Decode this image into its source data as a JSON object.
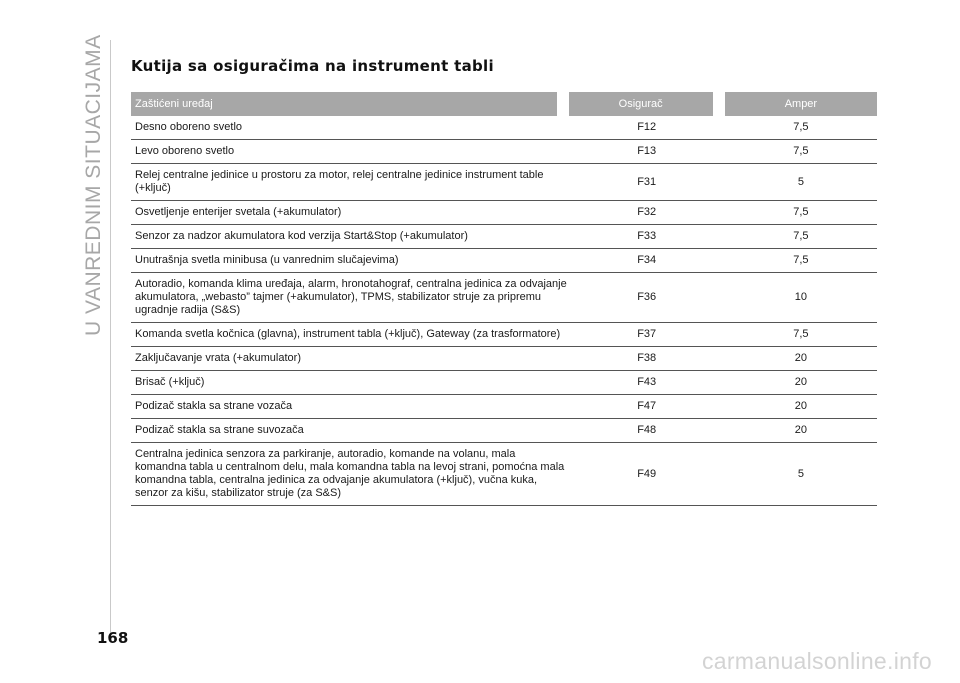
{
  "side_title": "U VANREDNIM SITUACIJAMA",
  "section_title": "Kutija sa osiguračima na instrument tabli",
  "table": {
    "headers": [
      "Zaštićeni uređaj",
      "Osigurač",
      "Amper"
    ],
    "rows": [
      {
        "device": "Desno oboreno svetlo",
        "fuse": "F12",
        "amp": "7,5"
      },
      {
        "device": "Levo oboreno svetlo",
        "fuse": "F13",
        "amp": "7,5"
      },
      {
        "device": "Relej centralne jedinice u prostoru za motor, relej centralne jedinice instrument table (+ključ)",
        "fuse": "F31",
        "amp": "5"
      },
      {
        "device": "Osvetljenje enterijer svetala (+akumulator)",
        "fuse": "F32",
        "amp": "7,5"
      },
      {
        "device": "Senzor za nadzor akumulatora kod verzija Start&Stop (+akumulator)",
        "fuse": "F33",
        "amp": "7,5"
      },
      {
        "device": "Unutrašnja svetla minibusa (u vanrednim slučajevima)",
        "fuse": "F34",
        "amp": "7,5"
      },
      {
        "device": "Autoradio, komanda klima uređaja, alarm, hronotahograf, centralna jedinica za odvajanje akumulatora, „webasto” tajmer (+akumulator), TPMS, stabilizator struje za pripremu ugradnje radija (S&S)",
        "fuse": "F36",
        "amp": "10"
      },
      {
        "device": "Komanda svetla kočnica (glavna), instrument tabla (+ključ), Gateway (za trasformatore)",
        "fuse": "F37",
        "amp": "7,5"
      },
      {
        "device": "Zaključavanje vrata (+akumulator)",
        "fuse": "F38",
        "amp": "20"
      },
      {
        "device": "Brisač (+ključ)",
        "fuse": "F43",
        "amp": "20"
      },
      {
        "device": "Podizač stakla sa strane vozača",
        "fuse": "F47",
        "amp": "20"
      },
      {
        "device": "Podizač stakla sa strane suvozača",
        "fuse": "F48",
        "amp": "20"
      },
      {
        "device": "Centralna jedinica senzora za parkiranje, autoradio, komande na volanu, mala komandna tabla u centralnom delu, mala komandna tabla na levoj strani, pomoćna mala komandna tabla, centralna jedinica za odvajanje akumulatora (+ključ), vučna kuka, senzor za kišu, stabilizator struje (za S&S)",
        "fuse": "F49",
        "amp": "5"
      }
    ]
  },
  "page_number": "168",
  "watermark": "carmanualsonline.info"
}
